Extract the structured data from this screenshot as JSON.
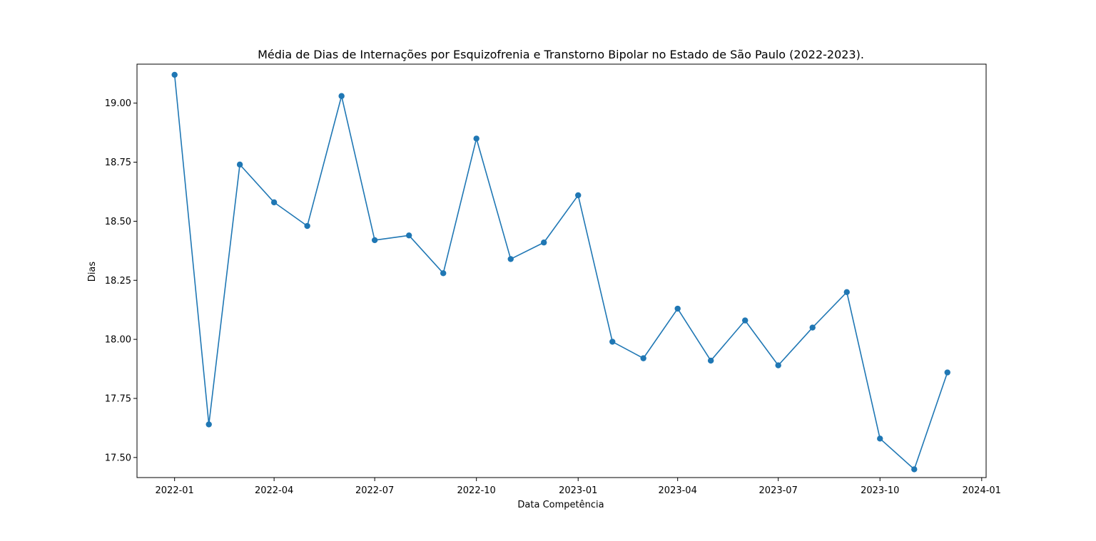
{
  "chart_data": {
    "type": "line",
    "title": "Média de Dias de Internações por Esquizofrenia e Transtorno Bipolar no Estado de São Paulo (2022-2023).",
    "xlabel": "Data Competência",
    "ylabel": "Dias",
    "x": [
      "2022-01-01",
      "2022-02-01",
      "2022-03-01",
      "2022-04-01",
      "2022-05-01",
      "2022-06-01",
      "2022-07-01",
      "2022-08-01",
      "2022-09-01",
      "2022-10-01",
      "2022-11-01",
      "2022-12-01",
      "2023-01-01",
      "2023-02-01",
      "2023-03-01",
      "2023-04-01",
      "2023-05-01",
      "2023-06-01",
      "2023-07-01",
      "2023-08-01",
      "2023-09-01",
      "2023-10-01",
      "2023-11-01",
      "2023-12-01"
    ],
    "series": [
      {
        "values": [
          19.12,
          17.64,
          18.74,
          18.58,
          18.48,
          19.03,
          18.42,
          18.44,
          18.28,
          18.85,
          18.34,
          18.41,
          18.61,
          17.99,
          17.92,
          18.13,
          17.91,
          18.08,
          17.89,
          18.05,
          18.2,
          17.58,
          17.45,
          17.86
        ],
        "color": "#1f77b4",
        "marker": "circle"
      }
    ],
    "xlim": [
      "2021-11-28",
      "2024-01-05"
    ],
    "ylim": [
      17.415,
      19.165
    ],
    "x_ticks": [
      "2022-01-01",
      "2022-04-01",
      "2022-07-01",
      "2022-10-01",
      "2023-01-01",
      "2023-04-01",
      "2023-07-01",
      "2023-10-01",
      "2024-01-01"
    ],
    "x_tick_labels": [
      "2022-01",
      "2022-04",
      "2022-07",
      "2022-10",
      "2023-01",
      "2023-04",
      "2023-07",
      "2023-10",
      "2024-01"
    ],
    "y_ticks": [
      17.5,
      17.75,
      18.0,
      18.25,
      18.5,
      18.75,
      19.0
    ],
    "y_tick_labels": [
      "17.50",
      "17.75",
      "18.00",
      "18.25",
      "18.50",
      "18.75",
      "19.00"
    ],
    "grid": false,
    "legend": "none"
  }
}
